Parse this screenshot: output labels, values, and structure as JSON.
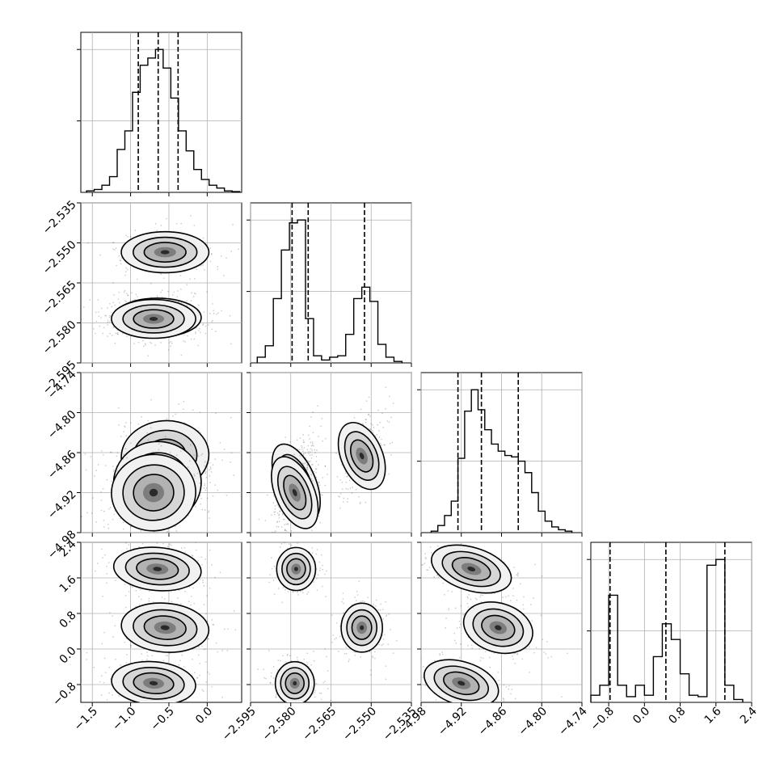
{
  "chart_data": {
    "type": "corner",
    "grid": true,
    "params": [
      {
        "ticks": [
          -1.5,
          -1.0,
          -0.5,
          0.0
        ],
        "tick_labels": [
          "−1.5",
          "−1.0",
          "−0.5",
          "0.0"
        ],
        "range": [
          -1.65,
          0.45
        ]
      },
      {
        "ticks": [
          -2.595,
          -2.58,
          -2.565,
          -2.55,
          -2.535
        ],
        "tick_labels": [
          "−2.595",
          "−2.580",
          "−2.565",
          "−2.550",
          "−2.535"
        ],
        "range": [
          -2.595,
          -2.535
        ]
      },
      {
        "ticks": [
          -4.98,
          -4.92,
          -4.86,
          -4.8,
          -4.74
        ],
        "tick_labels": [
          "−4.98",
          "−4.92",
          "−4.86",
          "−4.80",
          "−4.74"
        ],
        "range": [
          -4.98,
          -4.74
        ]
      },
      {
        "ticks": [
          -0.8,
          0.0,
          0.8,
          1.6,
          2.4
        ],
        "tick_labels": [
          "−0.8",
          "0.0",
          "0.8",
          "1.6",
          "2.4"
        ],
        "range": [
          -1.2,
          2.4
        ]
      }
    ],
    "diagonal": [
      {
        "bin_edges": [
          -1.575,
          -1.475,
          -1.375,
          -1.275,
          -1.175,
          -1.075,
          -0.975,
          -0.875,
          -0.775,
          -0.675,
          -0.575,
          -0.475,
          -0.375,
          -0.275,
          -0.175,
          -0.075,
          0.025,
          0.125,
          0.225,
          0.325,
          0.425
        ],
        "counts": [
          0.01,
          0.02,
          0.05,
          0.11,
          0.3,
          0.43,
          0.7,
          0.89,
          0.94,
          1.0,
          0.87,
          0.66,
          0.43,
          0.29,
          0.16,
          0.09,
          0.05,
          0.03,
          0.01,
          0.005
        ],
        "quantiles": [
          -0.9,
          -0.64,
          -0.38
        ]
      },
      {
        "bin_edges": [
          -2.5925,
          -2.5895,
          -2.5865,
          -2.5835,
          -2.5805,
          -2.5775,
          -2.5745,
          -2.5715,
          -2.5685,
          -2.5655,
          -2.5625,
          -2.5595,
          -2.5565,
          -2.5535,
          -2.5505,
          -2.5475,
          -2.5445,
          -2.5415,
          -2.5385
        ],
        "counts": [
          0.04,
          0.12,
          0.45,
          0.79,
          0.98,
          1.0,
          0.31,
          0.05,
          0.02,
          0.04,
          0.05,
          0.2,
          0.45,
          0.53,
          0.43,
          0.13,
          0.04,
          0.01
        ],
        "quantiles": [
          -2.5795,
          -2.5735,
          -2.5525
        ]
      },
      {
        "bin_edges": [
          -4.965,
          -4.955,
          -4.945,
          -4.935,
          -4.925,
          -4.915,
          -4.905,
          -4.895,
          -4.885,
          -4.875,
          -4.865,
          -4.855,
          -4.845,
          -4.835,
          -4.825,
          -4.815,
          -4.805,
          -4.795,
          -4.785,
          -4.775,
          -4.765,
          -4.755
        ],
        "counts": [
          0.01,
          0.05,
          0.12,
          0.22,
          0.52,
          0.85,
          1.0,
          0.86,
          0.72,
          0.62,
          0.57,
          0.54,
          0.53,
          0.5,
          0.42,
          0.28,
          0.15,
          0.08,
          0.04,
          0.02,
          0.01
        ],
        "quantiles": [
          -4.925,
          -4.89,
          -4.835
        ]
      },
      {
        "bin_edges": [
          -1.2,
          -1.0,
          -0.8,
          -0.6,
          -0.4,
          -0.2,
          0.0,
          0.2,
          0.4,
          0.6,
          0.8,
          1.0,
          1.2,
          1.4,
          1.6,
          1.8,
          2.0,
          2.2
        ],
        "counts": [
          0.05,
          0.12,
          0.75,
          0.12,
          0.04,
          0.12,
          0.05,
          0.32,
          0.55,
          0.44,
          0.2,
          0.05,
          0.04,
          0.96,
          1.0,
          0.12,
          0.02
        ],
        "quantiles": [
          -0.77,
          0.48,
          1.8
        ]
      }
    ],
    "modes": [
      {
        "values": [
          -0.55,
          -2.5535,
          -4.865,
          0.48
        ],
        "spread": [
          0.26,
          0.0035,
          0.024,
          0.25
        ],
        "weight": 0.33
      },
      {
        "values": [
          -0.65,
          -2.578,
          -4.905,
          1.8
        ],
        "spread": [
          0.26,
          0.0033,
          0.028,
          0.22
        ],
        "weight": 0.34
      },
      {
        "values": [
          -0.7,
          -2.5785,
          -4.92,
          -0.77
        ],
        "spread": [
          0.25,
          0.0033,
          0.026,
          0.22
        ],
        "weight": 0.33
      }
    ],
    "correlations": [
      {
        "pair": [
          2,
          0
        ],
        "r": 0.1
      },
      {
        "pair": [
          2,
          1
        ],
        "r": 0.55
      },
      {
        "pair": [
          3,
          2
        ],
        "r": -0.4
      },
      {
        "pair": [
          3,
          0
        ],
        "r": -0.1
      }
    ]
  }
}
